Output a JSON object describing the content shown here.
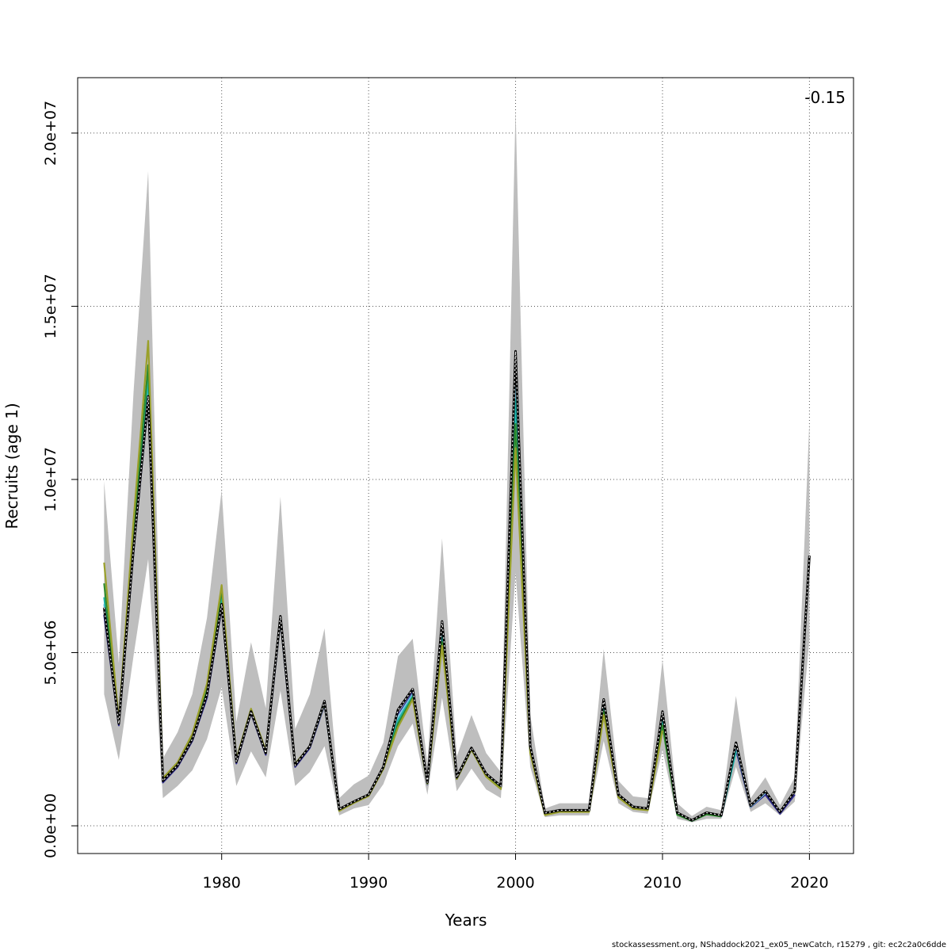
{
  "chart_data": {
    "type": "line",
    "title": "",
    "xlabel": "Years",
    "ylabel": "Recruits (age 1)",
    "corner_label": "-0.15",
    "xlim": [
      1970.2,
      2023
    ],
    "ylim": [
      -800000,
      21600000
    ],
    "x_ticks": [
      1980,
      1990,
      2000,
      2010,
      2020
    ],
    "x_tick_labels": [
      "1980",
      "1990",
      "2000",
      "2010",
      "2020"
    ],
    "y_ticks": [
      0,
      5000000,
      10000000,
      15000000,
      20000000
    ],
    "y_tick_labels": [
      "0.0e+00",
      "5.0e+06",
      "1.0e+07",
      "1.5e+07",
      "2.0e+07"
    ],
    "grid": true,
    "years": [
      1972,
      1973,
      1974,
      1975,
      1976,
      1977,
      1978,
      1979,
      1980,
      1981,
      1982,
      1983,
      1984,
      1985,
      1986,
      1987,
      1988,
      1989,
      1990,
      1991,
      1992,
      1993,
      1994,
      1995,
      1996,
      1997,
      1998,
      1999,
      2000,
      2001,
      2002,
      2003,
      2004,
      2005,
      2006,
      2007,
      2008,
      2009,
      2010,
      2011,
      2012,
      2013,
      2014,
      2015,
      2016,
      2017,
      2018,
      2019,
      2020
    ],
    "ci_band": {
      "upper": [
        9950000,
        4700000,
        12500000,
        18900000,
        1950000,
        2700000,
        3800000,
        6000000,
        9700000,
        3000000,
        5300000,
        3400000,
        9500000,
        2800000,
        3800000,
        5700000,
        800000,
        1200000,
        1450000,
        2400000,
        4900000,
        5400000,
        1800000,
        8300000,
        2000000,
        3200000,
        2100000,
        1550000,
        20700000,
        3200000,
        500000,
        650000,
        650000,
        650000,
        5100000,
        1300000,
        850000,
        800000,
        4800000,
        650000,
        280000,
        550000,
        450000,
        3750000,
        800000,
        1400000,
        600000,
        1400000,
        11700000
      ],
      "lower": [
        3800000,
        1900000,
        4900000,
        7700000,
        800000,
        1150000,
        1600000,
        2500000,
        4000000,
        1150000,
        2150000,
        1400000,
        3900000,
        1150000,
        1550000,
        2300000,
        300000,
        500000,
        600000,
        1200000,
        2300000,
        2950000,
        900000,
        3700000,
        1000000,
        1650000,
        1050000,
        800000,
        7300000,
        1700000,
        250000,
        300000,
        300000,
        300000,
        2450000,
        650000,
        400000,
        350000,
        2200000,
        200000,
        100000,
        200000,
        200000,
        1700000,
        400000,
        650000,
        300000,
        700000,
        5400000
      ]
    },
    "series": [
      {
        "color": "#000000",
        "dashed": true,
        "values": [
          6300000,
          2950000,
          8000000,
          12400000,
          1300000,
          1750000,
          2500000,
          3800000,
          6400000,
          1850000,
          3300000,
          2100000,
          6050000,
          1750000,
          2300000,
          3600000,
          480000,
          700000,
          900000,
          1700000,
          3350000,
          3950000,
          1250000,
          5900000,
          1400000,
          2250000,
          1500000,
          1150000,
          13700000,
          2300000,
          370000,
          450000,
          450000,
          450000,
          3650000,
          900000,
          550000,
          500000,
          3300000,
          380000,
          160000,
          380000,
          300000,
          2400000,
          580000,
          1000000,
          400000,
          1000000,
          7800000
        ]
      },
      {
        "color": "#2e2a8c",
        "values": [
          6100000,
          2900000,
          7900000,
          12300000,
          1250000,
          1700000,
          2450000,
          3700000,
          6300000,
          1800000,
          3250000,
          2050000,
          5950000,
          1700000,
          2250000,
          3500000,
          450000,
          680000,
          880000,
          1650000,
          3200000,
          3850000,
          1200000,
          5750000,
          1350000,
          2200000,
          1450000,
          1100000,
          13300000,
          2200000,
          330000,
          420000,
          420000,
          420000,
          3450000,
          850000,
          520000,
          480000,
          3100000,
          340000,
          140000,
          340000,
          280000,
          2200000,
          540000,
          900000,
          350000,
          900000,
          null
        ]
      },
      {
        "color": "#7ec8e3",
        "values": [
          6400000,
          2950000,
          8100000,
          12500000,
          1300000,
          1750000,
          2500000,
          3800000,
          6500000,
          1850000,
          3300000,
          2100000,
          6000000,
          1750000,
          2300000,
          3550000,
          460000,
          690000,
          890000,
          1680000,
          3150000,
          3800000,
          1220000,
          5600000,
          1380000,
          2250000,
          1480000,
          1120000,
          12900000,
          2250000,
          340000,
          430000,
          430000,
          430000,
          3500000,
          870000,
          530000,
          490000,
          3150000,
          350000,
          150000,
          350000,
          290000,
          2300000,
          550000,
          950000,
          null,
          null,
          null
        ]
      },
      {
        "color": "#20b2aa",
        "values": [
          6600000,
          2980000,
          8300000,
          12900000,
          1320000,
          1770000,
          2550000,
          3900000,
          6600000,
          1870000,
          3320000,
          2120000,
          6000000,
          1770000,
          2300000,
          3550000,
          450000,
          680000,
          880000,
          1670000,
          3050000,
          3750000,
          1220000,
          5450000,
          1370000,
          2230000,
          1460000,
          1100000,
          12300000,
          2200000,
          330000,
          420000,
          420000,
          420000,
          3400000,
          860000,
          520000,
          480000,
          3050000,
          340000,
          150000,
          340000,
          280000,
          2150000,
          null,
          null,
          null,
          null,
          null
        ]
      },
      {
        "color": "#2e8b2e",
        "values": [
          7000000,
          3000000,
          8500000,
          13300000,
          1350000,
          1800000,
          2600000,
          4000000,
          6800000,
          1900000,
          3350000,
          2150000,
          6000000,
          1780000,
          2300000,
          3550000,
          440000,
          670000,
          870000,
          1650000,
          2950000,
          3700000,
          1220000,
          5300000,
          1360000,
          2200000,
          1440000,
          1080000,
          11600000,
          2150000,
          320000,
          410000,
          410000,
          410000,
          3300000,
          840000,
          500000,
          460000,
          2900000,
          320000,
          140000,
          330000,
          270000,
          null,
          null,
          null,
          null,
          null,
          null
        ]
      },
      {
        "color": "#9aa02a",
        "values": [
          7600000,
          3050000,
          8800000,
          14000000,
          1380000,
          1830000,
          2650000,
          4100000,
          6950000,
          1920000,
          3380000,
          2170000,
          6000000,
          1790000,
          2300000,
          3550000,
          430000,
          660000,
          860000,
          1640000,
          2850000,
          3650000,
          1220000,
          5200000,
          1350000,
          2200000,
          1420000,
          1060000,
          10900000,
          2100000,
          310000,
          400000,
          400000,
          400000,
          3200000,
          820000,
          490000,
          450000,
          2750000,
          null,
          null,
          null,
          null,
          null,
          null,
          null,
          null,
          null,
          null
        ]
      }
    ]
  },
  "footer": "stockassessment.org, NShaddock2021_ex05_newCatch, r15279 , git: ec2c2a0c6dde"
}
